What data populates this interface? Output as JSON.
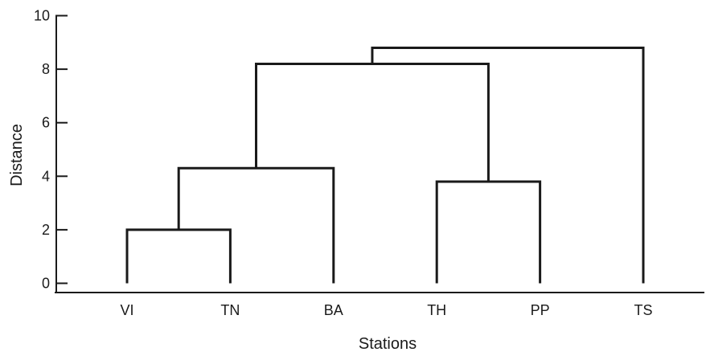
{
  "chart_data": {
    "type": "dendrogram",
    "title": "",
    "xlabel": "Stations",
    "ylabel": "Distance",
    "ylim": [
      0,
      10
    ],
    "yticks": [
      "0",
      "2",
      "4",
      "6",
      "8",
      "10"
    ],
    "leaves": [
      "VI",
      "TN",
      "BA",
      "TH",
      "PP",
      "TS"
    ],
    "merges": [
      {
        "id": "A",
        "left": "VI",
        "right": "TN",
        "height": 2.0
      },
      {
        "id": "B",
        "left": "A",
        "right": "BA",
        "height": 4.3
      },
      {
        "id": "C",
        "left": "TH",
        "right": "PP",
        "height": 3.8
      },
      {
        "id": "D",
        "left": "B",
        "right": "C",
        "height": 8.2
      },
      {
        "id": "E",
        "left": "D",
        "right": "TS",
        "height": 8.8
      }
    ],
    "grid": false,
    "line_color": "#1a1a1a"
  }
}
